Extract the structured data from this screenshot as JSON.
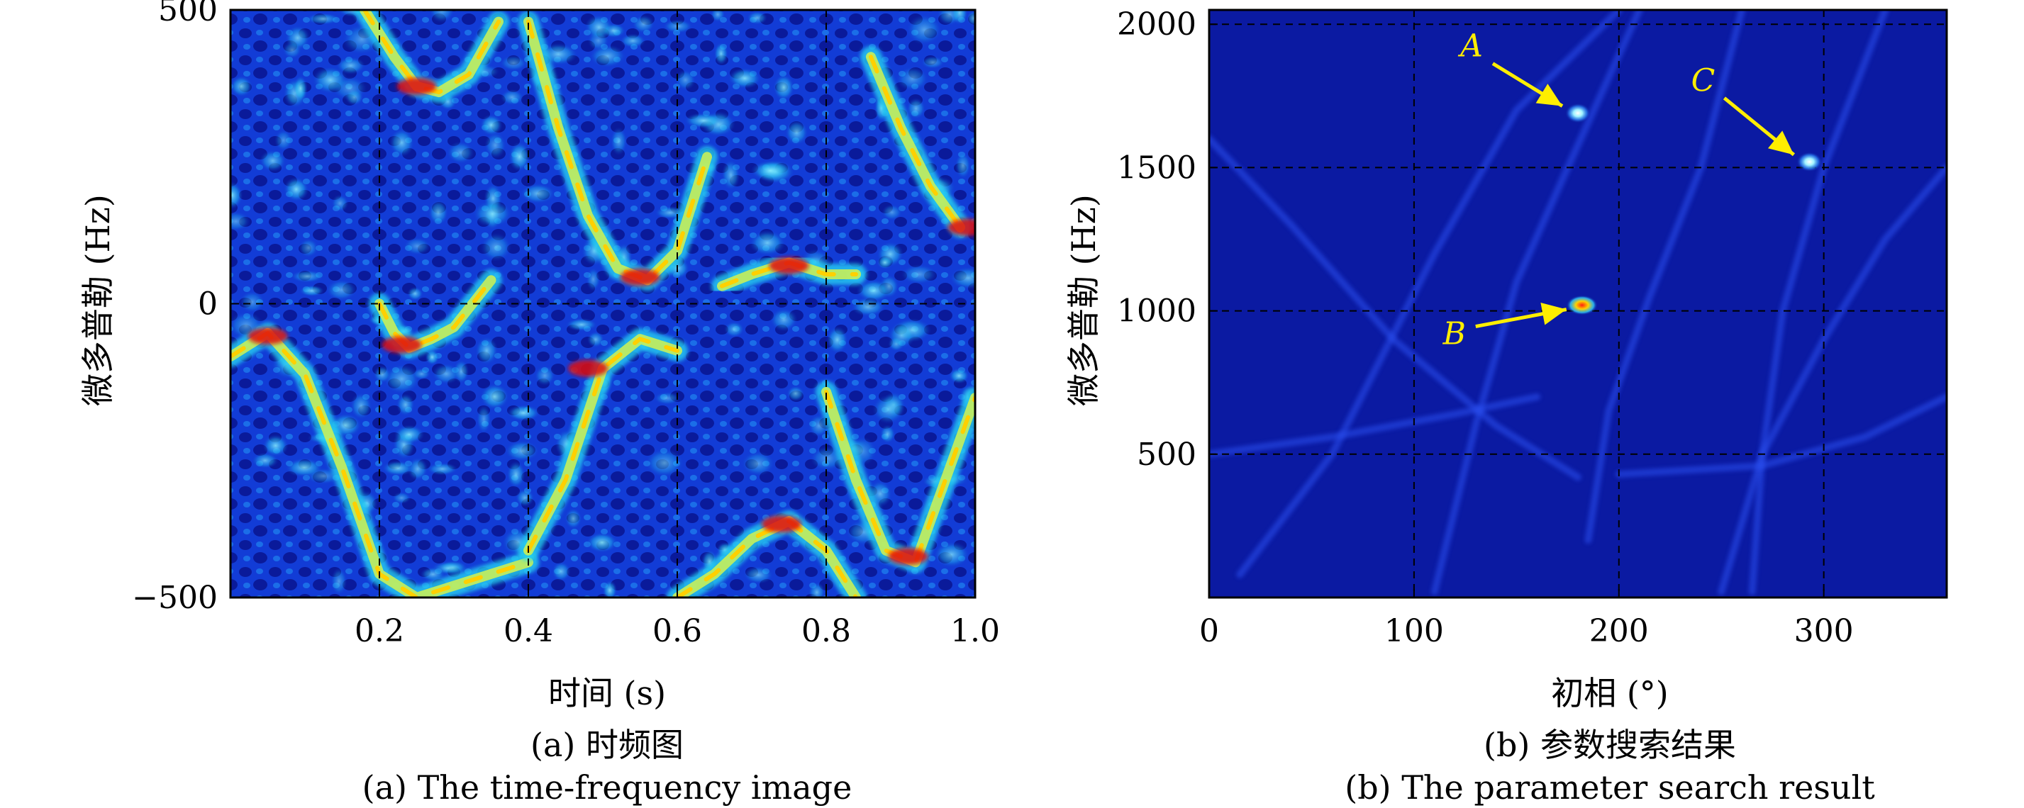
{
  "chart_data": [
    {
      "type": "heatmap",
      "panel": "a",
      "xlabel": "时间 (s)",
      "ylabel": "微多普勒 (Hz)",
      "xlim": [
        0,
        1.0
      ],
      "ylim": [
        -500,
        500
      ],
      "xticks": [
        0.2,
        0.4,
        0.6,
        0.8,
        1.0
      ],
      "xtick_labels": [
        "0.2",
        "0.4",
        "0.6",
        "0.8",
        "1.0"
      ],
      "yticks": [
        -500,
        0,
        500
      ],
      "ytick_labels": [
        "−500",
        "0",
        "500"
      ],
      "grid": true,
      "colormap": "jet",
      "ridges": [
        {
          "x": [
            0.0,
            0.05,
            0.1,
            0.15,
            0.2,
            0.25,
            0.3,
            0.35,
            0.4
          ],
          "y": [
            -90,
            -50,
            -120,
            -280,
            -460,
            -500,
            -480,
            -460,
            -440
          ]
        },
        {
          "x": [
            0.2,
            0.22,
            0.24,
            0.27,
            0.3,
            0.35
          ],
          "y": [
            0,
            -50,
            -75,
            -60,
            -40,
            40
          ]
        },
        {
          "x": [
            0.18,
            0.22,
            0.25,
            0.28,
            0.32,
            0.36
          ],
          "y": [
            500,
            420,
            370,
            360,
            390,
            480
          ]
        },
        {
          "x": [
            0.4,
            0.44,
            0.48,
            0.52,
            0.56,
            0.6,
            0.64
          ],
          "y": [
            480,
            300,
            150,
            60,
            40,
            90,
            250
          ]
        },
        {
          "x": [
            0.66,
            0.7,
            0.75,
            0.8,
            0.84
          ],
          "y": [
            30,
            50,
            70,
            50,
            50
          ]
        },
        {
          "x": [
            0.6,
            0.65,
            0.7,
            0.75,
            0.8,
            0.84
          ],
          "y": [
            -500,
            -460,
            -400,
            -370,
            -420,
            -500
          ]
        },
        {
          "x": [
            0.8,
            0.84,
            0.88,
            0.92,
            0.96,
            1.0
          ],
          "y": [
            -150,
            -300,
            -420,
            -440,
            -300,
            -160
          ]
        },
        {
          "x": [
            0.86,
            0.9,
            0.94,
            0.98
          ],
          "y": [
            420,
            300,
            200,
            130
          ]
        },
        {
          "x": [
            0.4,
            0.45,
            0.5,
            0.55,
            0.6
          ],
          "y": [
            -420,
            -300,
            -110,
            -60,
            -80
          ]
        }
      ],
      "caption_zh": "(a) 时频图",
      "caption_en": "(a) The time-frequency image"
    },
    {
      "type": "heatmap",
      "panel": "b",
      "xlabel": "初相 (°)",
      "ylabel": "微多普勒 (Hz)",
      "xlim": [
        0,
        360
      ],
      "ylim": [
        0,
        2050
      ],
      "xticks": [
        0,
        100,
        200,
        300
      ],
      "xtick_labels": [
        "0",
        "100",
        "200",
        "300"
      ],
      "yticks": [
        500,
        1000,
        1500,
        2000
      ],
      "ytick_labels": [
        "500",
        "1000",
        "1500",
        "2000"
      ],
      "grid": true,
      "colormap": "jet",
      "peaks": [
        {
          "label": "A",
          "x": 180,
          "y": 1690
        },
        {
          "label": "B",
          "x": 182,
          "y": 1020
        },
        {
          "label": "C",
          "x": 293,
          "y": 1520
        }
      ],
      "caption_zh": "(b) 参数搜索结果",
      "caption_en": "(b) The parameter search result"
    }
  ],
  "colors": {
    "background_low": "#0a0a96",
    "mid": "#1ec8f0",
    "ridge": "#ffe600",
    "peak": "#e01010",
    "annotation_arrow": "#ffee00",
    "grid": "#000000"
  }
}
